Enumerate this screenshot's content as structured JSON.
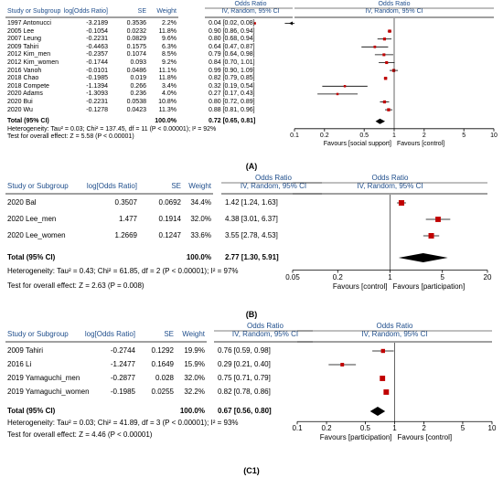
{
  "captions": [
    "(A)",
    "(B)",
    "(C1)"
  ],
  "chart_data": [
    {
      "type": "forest",
      "headers": {
        "study": "Study or Subgroup",
        "logor": "log[Odds Ratio]",
        "se": "SE",
        "weight": "Weight",
        "or_title": "Odds Ratio",
        "or_sub": "IV, Random, 95% CI",
        "plot_title": "Odds Ratio",
        "plot_sub": "IV, Random, 95% CI"
      },
      "rows": [
        {
          "study": "1997 Antonucci",
          "logor": "-3.2189",
          "se": "0.3536",
          "weight": "2.2%",
          "ci": "0.04 [0.02, 0.08]",
          "or": 0.04,
          "lo": 0.02,
          "hi": 0.08
        },
        {
          "study": "2005 Lee",
          "logor": "-0.1054",
          "se": "0.0232",
          "weight": "11.8%",
          "ci": "0.90 [0.86, 0.94]",
          "or": 0.9,
          "lo": 0.86,
          "hi": 0.94
        },
        {
          "study": "2007 Leung",
          "logor": "-0.2231",
          "se": "0.0829",
          "weight": "9.6%",
          "ci": "0.80 [0.68, 0.94]",
          "or": 0.8,
          "lo": 0.68,
          "hi": 0.94
        },
        {
          "study": "2009 Tahiri",
          "logor": "-0.4463",
          "se": "0.1575",
          "weight": "6.3%",
          "ci": "0.64 [0.47, 0.87]",
          "or": 0.64,
          "lo": 0.47,
          "hi": 0.87
        },
        {
          "study": "2012 Kim_men",
          "logor": "-0.2357",
          "se": "0.1074",
          "weight": "8.5%",
          "ci": "0.79 [0.64, 0.98]",
          "or": 0.79,
          "lo": 0.64,
          "hi": 0.98
        },
        {
          "study": "2012 Kim_women",
          "logor": "-0.1744",
          "se": "0.093",
          "weight": "9.2%",
          "ci": "0.84 [0.70, 1.01]",
          "or": 0.84,
          "lo": 0.7,
          "hi": 1.01
        },
        {
          "study": "2016 Vanoh",
          "logor": "-0.0101",
          "se": "0.0486",
          "weight": "11.1%",
          "ci": "0.99 [0.90, 1.09]",
          "or": 0.99,
          "lo": 0.9,
          "hi": 1.09
        },
        {
          "study": "2018 Chao",
          "logor": "-0.1985",
          "se": "0.019",
          "weight": "11.8%",
          "ci": "0.82 [0.79, 0.85]",
          "or": 0.82,
          "lo": 0.79,
          "hi": 0.85
        },
        {
          "study": "2018 Compete",
          "logor": "-1.1394",
          "se": "0.266",
          "weight": "3.4%",
          "ci": "0.32 [0.19, 0.54]",
          "or": 0.32,
          "lo": 0.19,
          "hi": 0.54
        },
        {
          "study": "2020 Adams",
          "logor": "-1.3093",
          "se": "0.236",
          "weight": "4.0%",
          "ci": "0.27 [0.17, 0.43]",
          "or": 0.27,
          "lo": 0.17,
          "hi": 0.43
        },
        {
          "study": "2020 Bui",
          "logor": "-0.2231",
          "se": "0.0538",
          "weight": "10.8%",
          "ci": "0.80 [0.72, 0.89]",
          "or": 0.8,
          "lo": 0.72,
          "hi": 0.89
        },
        {
          "study": "2020 Wu",
          "logor": "-0.1278",
          "se": "0.0423",
          "weight": "11.3%",
          "ci": "0.88 [0.81, 0.96]",
          "or": 0.88,
          "lo": 0.81,
          "hi": 0.96
        }
      ],
      "total": {
        "label": "Total (95% CI)",
        "weight": "100.0%",
        "ci": "0.72 [0.65, 0.81]",
        "or": 0.72,
        "lo": 0.65,
        "hi": 0.81
      },
      "heterogeneity": "Heterogeneity: Tau² = 0.03; Chi² = 137.45, df = 11 (P < 0.00001); I² = 92%",
      "overall_effect": "Test for overall effect: Z = 5.58 (P < 0.00001)",
      "xscale": "log",
      "xlim": [
        0.1,
        10
      ],
      "ticks": [
        0.1,
        0.2,
        0.5,
        1,
        2,
        5,
        10
      ],
      "tick_labels": [
        "0.1",
        "0.2",
        "0.5",
        "1",
        "2",
        "5",
        "10"
      ],
      "favours_left": "Favours [social support]",
      "favours_right": "Favours [control]"
    },
    {
      "type": "forest",
      "headers": {
        "study": "Study or Subgroup",
        "logor": "log[Odds Ratio]",
        "se": "SE",
        "weight": "Weight",
        "or_title": "Odds Ratio",
        "or_sub": "IV, Random, 95% CI",
        "plot_title": "Odds Ratio",
        "plot_sub": "IV, Random, 95% CI"
      },
      "rows": [
        {
          "study": "2020 Bal",
          "logor": "0.3507",
          "se": "0.0692",
          "weight": "34.4%",
          "ci": "1.42 [1.24, 1.63]",
          "or": 1.42,
          "lo": 1.24,
          "hi": 1.63
        },
        {
          "study": "2020 Lee_men",
          "logor": "1.477",
          "se": "0.1914",
          "weight": "32.0%",
          "ci": "4.38 [3.01, 6.37]",
          "or": 4.38,
          "lo": 3.01,
          "hi": 6.37
        },
        {
          "study": "2020 Lee_women",
          "logor": "1.2669",
          "se": "0.1247",
          "weight": "33.6%",
          "ci": "3.55 [2.78, 4.53]",
          "or": 3.55,
          "lo": 2.78,
          "hi": 4.53
        }
      ],
      "total": {
        "label": "Total (95% CI)",
        "weight": "100.0%",
        "ci": "2.77 [1.30, 5.91]",
        "or": 2.77,
        "lo": 1.3,
        "hi": 5.91
      },
      "heterogeneity": "Heterogeneity: Tau² = 0.43; Chi² = 61.85, df = 2 (P < 0.00001); I² = 97%",
      "overall_effect": "Test for overall effect: Z = 2.63 (P = 0.008)",
      "xscale": "log",
      "xlim": [
        0.05,
        20
      ],
      "ticks": [
        0.05,
        0.2,
        1,
        5,
        20
      ],
      "tick_labels": [
        "0.05",
        "0.2",
        "1",
        "5",
        "20"
      ],
      "favours_left": "Favours [control]",
      "favours_right": "Favours [participation]"
    },
    {
      "type": "forest",
      "headers": {
        "study": "Study or Subgroup",
        "logor": "log[Odds Ratio]",
        "se": "SE",
        "weight": "Weight",
        "or_title": "Odds Ratio",
        "or_sub": "IV, Random, 95% CI",
        "plot_title": "Odds Ratio",
        "plot_sub": "IV, Random, 95% CI"
      },
      "rows": [
        {
          "study": "2009 Tahiri",
          "logor": "-0.2744",
          "se": "0.1292",
          "weight": "19.9%",
          "ci": "0.76 [0.59, 0.98]",
          "or": 0.76,
          "lo": 0.59,
          "hi": 0.98
        },
        {
          "study": "2016 Li",
          "logor": "-1.2477",
          "se": "0.1649",
          "weight": "15.9%",
          "ci": "0.29 [0.21, 0.40]",
          "or": 0.29,
          "lo": 0.21,
          "hi": 0.4
        },
        {
          "study": "2019 Yamaguchi_men",
          "logor": "-0.2877",
          "se": "0.028",
          "weight": "32.0%",
          "ci": "0.75 [0.71, 0.79]",
          "or": 0.75,
          "lo": 0.71,
          "hi": 0.79
        },
        {
          "study": "2019 Yamaguchi_women",
          "logor": "-0.1985",
          "se": "0.0255",
          "weight": "32.2%",
          "ci": "0.82 [0.78, 0.86]",
          "or": 0.82,
          "lo": 0.78,
          "hi": 0.86
        }
      ],
      "total": {
        "label": "Total (95% CI)",
        "weight": "100.0%",
        "ci": "0.67 [0.56, 0.80]",
        "or": 0.67,
        "lo": 0.56,
        "hi": 0.8
      },
      "heterogeneity": "Heterogeneity: Tau² = 0.03; Chi² = 41.89, df = 3 (P < 0.00001); I² = 93%",
      "overall_effect": "Test for overall effect: Z = 4.46 (P < 0.00001)",
      "xscale": "log",
      "xlim": [
        0.1,
        10
      ],
      "ticks": [
        0.1,
        0.2,
        0.5,
        1,
        2,
        5,
        10
      ],
      "tick_labels": [
        "0.1",
        "0.2",
        "0.5",
        "1",
        "2",
        "5",
        "10"
      ],
      "favours_left": "Favours [participation]",
      "favours_right": "Favours [control]"
    }
  ]
}
